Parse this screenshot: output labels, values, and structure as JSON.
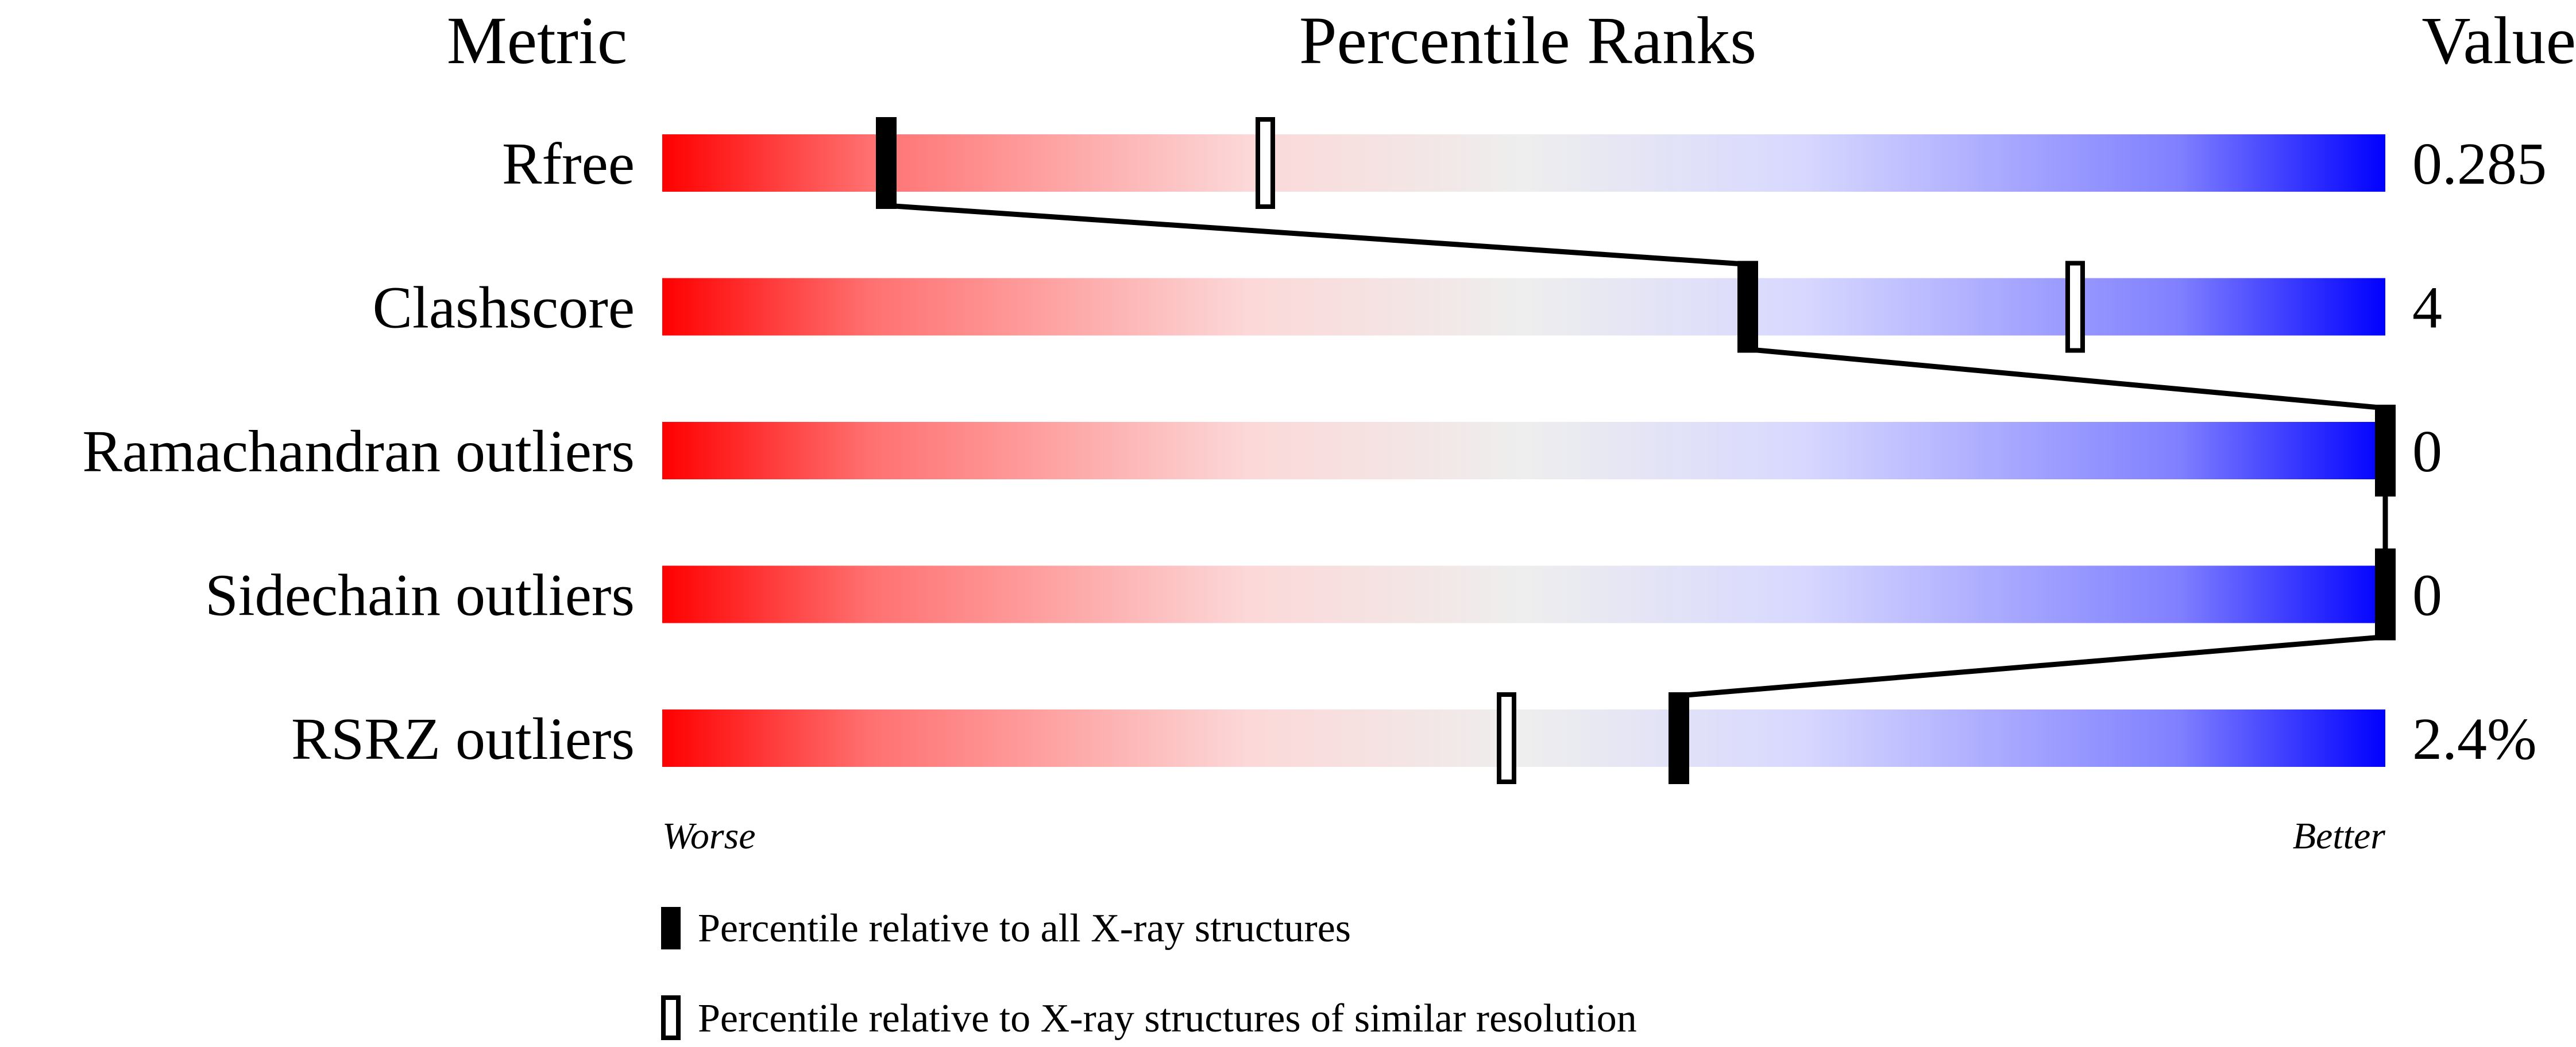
{
  "chart_data": {
    "type": "percentile-bar",
    "headers": {
      "metric": "Metric",
      "ranks": "Percentile Ranks",
      "value": "Value"
    },
    "xlim": [
      0,
      100
    ],
    "axis_labels": {
      "low": "Worse",
      "high": "Better"
    },
    "rows": [
      {
        "metric": "Rfree",
        "value": "0.285",
        "percentile_all": 13,
        "percentile_similar": 35
      },
      {
        "metric": "Clashscore",
        "value": "4",
        "percentile_all": 63,
        "percentile_similar": 82
      },
      {
        "metric": "Ramachandran outliers",
        "value": "0",
        "percentile_all": 100,
        "percentile_similar": null
      },
      {
        "metric": "Sidechain outliers",
        "value": "0",
        "percentile_all": 100,
        "percentile_similar": null
      },
      {
        "metric": "RSRZ outliers",
        "value": "2.4%",
        "percentile_all": 59,
        "percentile_similar": 49
      }
    ],
    "legend": {
      "all": "Percentile relative to all X-ray structures",
      "similar": "Percentile relative to X-ray structures of similar resolution"
    },
    "colors": {
      "worse": "#ff0000",
      "middle": "#eeeeee",
      "better": "#0000ff",
      "marker": "#000000"
    }
  }
}
